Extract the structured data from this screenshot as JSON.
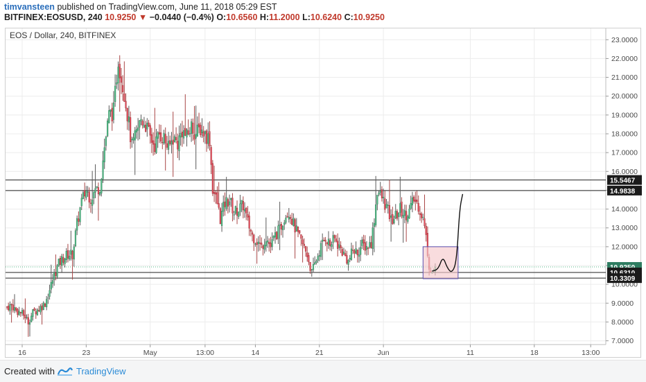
{
  "header": {
    "author": "timvansteen",
    "published_text": "published on TradingView.com, June 11, 2018 05:29 EST",
    "symbol": "BITFINEX:EOSUSD, 240",
    "last": "10.9250",
    "arrow": "▼",
    "change": "−0.0440 (−0.4%)",
    "o_label": "O:",
    "o_value": "10.6560",
    "h_label": "H:",
    "h_value": "11.2000",
    "l_label": "L:",
    "l_value": "10.6240",
    "c_label": "C:",
    "c_value": "10.9250"
  },
  "footer": {
    "created_with": "Created with",
    "brand": "TradingView"
  },
  "colors": {
    "up": "#53b987",
    "down": "#eb4d5c",
    "up_wick": "#5a5a5a",
    "down_wick": "#a84545",
    "label_dark": "#1b1b1b",
    "label_green": "#2e7d61",
    "box_fill": "#f6c9cc",
    "box_stroke": "#5a4fb0"
  },
  "chart_data": {
    "type": "candlestick",
    "title": "EOS / Dollar, 240, BITFINEX",
    "ylim": [
      6.8,
      23.6
    ],
    "y_ticks": [
      "7.0000",
      "8.0000",
      "9.0000",
      "10.0000",
      "11.0000",
      "12.0000",
      "13.0000",
      "14.0000",
      "15.0000",
      "16.0000",
      "17.0000",
      "18.0000",
      "19.0000",
      "20.0000",
      "21.0000",
      "22.0000",
      "23.0000"
    ],
    "x_ticks": [
      {
        "label": "16",
        "t": 10
      },
      {
        "label": "23",
        "t": 52
      },
      {
        "label": "May",
        "t": 94
      },
      {
        "label": "13:00",
        "t": 130
      },
      {
        "label": "14",
        "t": 163
      },
      {
        "label": "21",
        "t": 205
      },
      {
        "label": "Jun",
        "t": 247
      },
      {
        "label": "11",
        "t": 304
      },
      {
        "label": "18",
        "t": 346
      },
      {
        "label": "13:00",
        "t": 383
      }
    ],
    "t_max": 392,
    "horizontal_lines": [
      15.5467,
      14.9838,
      10.631,
      10.3309
    ],
    "price_labels": [
      {
        "text": "15.5467",
        "value": 15.5467,
        "style": "dark"
      },
      {
        "text": "14.9838",
        "value": 14.9838,
        "style": "dark"
      },
      {
        "text": "10.9250",
        "value": 10.925,
        "style": "green"
      },
      {
        "text": "01:30:34",
        "value": 10.57,
        "style": "green"
      },
      {
        "text": "10.6310",
        "value": 10.631,
        "style": "dark"
      },
      {
        "text": "10.3309",
        "value": 10.3309,
        "style": "dark"
      }
    ],
    "last_price_line": 10.925,
    "anchors": [
      [
        0,
        8.8
      ],
      [
        3,
        8.9
      ],
      [
        6,
        8.6
      ],
      [
        9,
        8.5
      ],
      [
        12,
        8.3
      ],
      [
        14,
        8.0
      ],
      [
        17,
        8.5
      ],
      [
        21,
        8.7
      ],
      [
        25,
        9.0
      ],
      [
        28,
        9.7
      ],
      [
        31,
        10.5
      ],
      [
        34,
        11.1
      ],
      [
        37,
        11.4
      ],
      [
        40,
        11.6
      ],
      [
        43,
        11.6
      ],
      [
        46,
        13.2
      ],
      [
        49,
        14.4
      ],
      [
        52,
        15.0
      ],
      [
        55,
        14.6
      ],
      [
        58,
        15.0
      ],
      [
        61,
        15.2
      ],
      [
        64,
        17.3
      ],
      [
        67,
        19.0
      ],
      [
        70,
        19.2
      ],
      [
        73,
        22.0
      ],
      [
        75,
        21.0
      ],
      [
        77,
        20.2
      ],
      [
        80,
        18.5
      ],
      [
        82,
        17.3
      ],
      [
        85,
        18.0
      ],
      [
        88,
        18.8
      ],
      [
        91,
        18.5
      ],
      [
        94,
        17.8
      ],
      [
        97,
        17.4
      ],
      [
        100,
        18.0
      ],
      [
        103,
        17.8
      ],
      [
        106,
        17.2
      ],
      [
        109,
        17.8
      ],
      [
        112,
        17.5
      ],
      [
        115,
        18.2
      ],
      [
        118,
        17.8
      ],
      [
        121,
        18.4
      ],
      [
        124,
        18.0
      ],
      [
        127,
        18.3
      ],
      [
        130,
        18.0
      ],
      [
        133,
        17.7
      ],
      [
        135,
        15.1
      ],
      [
        138,
        14.3
      ],
      [
        140,
        13.5
      ],
      [
        143,
        14.3
      ],
      [
        146,
        14.5
      ],
      [
        149,
        13.8
      ],
      [
        152,
        14.0
      ],
      [
        155,
        14.2
      ],
      [
        158,
        13.3
      ],
      [
        161,
        12.6
      ],
      [
        164,
        12.3
      ],
      [
        167,
        12.0
      ],
      [
        170,
        12.5
      ],
      [
        173,
        12.0
      ],
      [
        176,
        12.6
      ],
      [
        179,
        12.9
      ],
      [
        182,
        13.6
      ],
      [
        185,
        13.9
      ],
      [
        188,
        13.2
      ],
      [
        191,
        12.6
      ],
      [
        194,
        12.1
      ],
      [
        197,
        11.6
      ],
      [
        200,
        10.6
      ],
      [
        203,
        11.3
      ],
      [
        206,
        12.0
      ],
      [
        209,
        12.5
      ],
      [
        212,
        12.1
      ],
      [
        215,
        12.4
      ],
      [
        218,
        12.0
      ],
      [
        221,
        11.6
      ],
      [
        224,
        11.2
      ],
      [
        227,
        11.8
      ],
      [
        230,
        11.7
      ],
      [
        233,
        12.1
      ],
      [
        236,
        12.0
      ],
      [
        239,
        12.2
      ],
      [
        241,
        13.5
      ],
      [
        243,
        15.0
      ],
      [
        246,
        14.6
      ],
      [
        249,
        14.1
      ],
      [
        252,
        13.4
      ],
      [
        255,
        13.6
      ],
      [
        258,
        14.0
      ],
      [
        261,
        13.7
      ],
      [
        264,
        13.9
      ],
      [
        267,
        14.5
      ],
      [
        270,
        14.2
      ],
      [
        273,
        13.5
      ],
      [
        275,
        12.5
      ],
      [
        277,
        11.0
      ],
      [
        279,
        10.65
      ],
      [
        281,
        10.9
      ]
    ],
    "drawn_box": {
      "t0": 273,
      "t1": 296,
      "y0": 10.3,
      "y1": 12.0
    },
    "drawn_path": [
      [
        279,
        10.7
      ],
      [
        283,
        10.8
      ],
      [
        286,
        11.5
      ],
      [
        289,
        10.85
      ],
      [
        292,
        10.6
      ],
      [
        295,
        11.2
      ],
      [
        297,
        14.0
      ],
      [
        299,
        14.8
      ]
    ]
  }
}
